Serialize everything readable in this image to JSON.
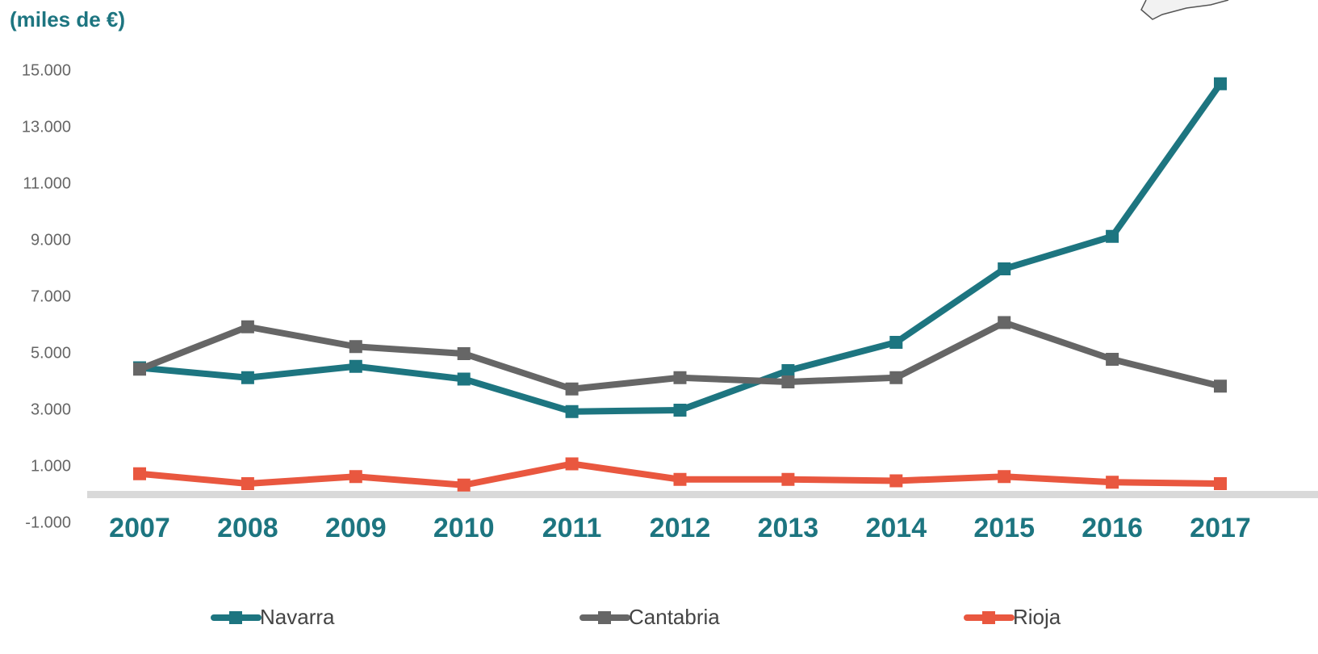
{
  "chart_data": {
    "type": "line",
    "title": "(miles de €)",
    "categories": [
      "2007",
      "2008",
      "2009",
      "2010",
      "2011",
      "2012",
      "2013",
      "2014",
      "2015",
      "2016",
      "2017"
    ],
    "series": [
      {
        "name": "Navarra",
        "color": "#1d7580",
        "values": [
          4500,
          4150,
          4550,
          4100,
          2950,
          3000,
          4400,
          5400,
          8000,
          9150,
          14550
        ]
      },
      {
        "name": "Cantabria",
        "color": "#666666",
        "values": [
          4450,
          5950,
          5250,
          5000,
          3750,
          4150,
          4000,
          4150,
          6100,
          4800,
          3850
        ]
      },
      {
        "name": "Rioja",
        "color": "#e9573f",
        "values": [
          750,
          400,
          650,
          350,
          1100,
          550,
          550,
          500,
          650,
          450,
          400
        ]
      }
    ],
    "ylim": [
      -1000,
      15000
    ],
    "yticks": [
      {
        "value": -1000,
        "label": "-1.000"
      },
      {
        "value": 1000,
        "label": "1.000"
      },
      {
        "value": 3000,
        "label": "3.000"
      },
      {
        "value": 5000,
        "label": "5.000"
      },
      {
        "value": 7000,
        "label": "7.000"
      },
      {
        "value": 9000,
        "label": "9.000"
      },
      {
        "value": 11000,
        "label": "11.000"
      },
      {
        "value": 13000,
        "label": "13.000"
      },
      {
        "value": 15000,
        "label": "15.000"
      }
    ],
    "grid": false
  }
}
